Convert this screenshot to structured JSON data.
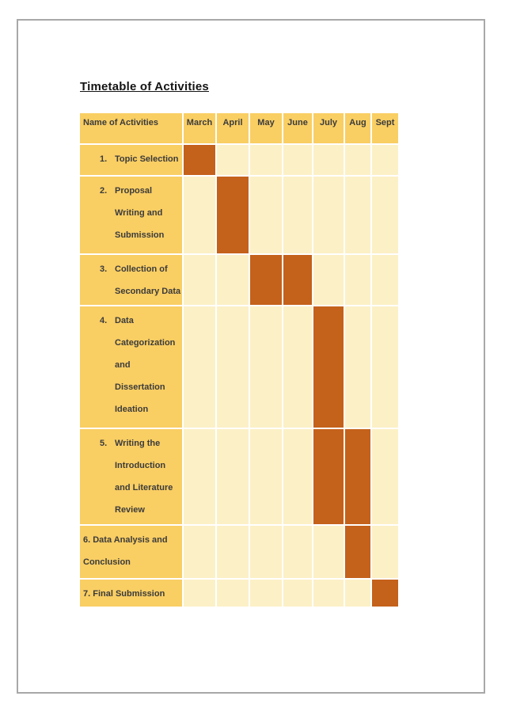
{
  "page": {
    "title": "Timetable of Activities"
  },
  "chart_data": {
    "type": "table",
    "subtype": "gantt",
    "title": "Timetable of Activities",
    "columns": [
      "Name of Activities",
      "March",
      "April",
      "May",
      "June",
      "July",
      "Aug",
      "Sept"
    ],
    "months": [
      "March",
      "April",
      "May",
      "June",
      "July",
      "Aug",
      "Sept"
    ],
    "rows": [
      {
        "number": "1.",
        "lines": [
          "Topic Selection"
        ],
        "hanging_indent": true,
        "active_months": [
          "March"
        ]
      },
      {
        "number": "2.",
        "lines": [
          "Proposal",
          "Writing and",
          "Submission"
        ],
        "hanging_indent": true,
        "active_months": [
          "April"
        ]
      },
      {
        "number": "3.",
        "lines": [
          "Collection of",
          "Secondary Data"
        ],
        "hanging_indent": true,
        "active_months": [
          "May",
          "June"
        ]
      },
      {
        "number": "4.",
        "lines": [
          "Data",
          "Categorization",
          "and",
          "Dissertation",
          "Ideation"
        ],
        "hanging_indent": true,
        "active_months": [
          "July"
        ]
      },
      {
        "number": "5.",
        "lines": [
          "Writing the",
          "Introduction",
          "and Literature",
          "Review"
        ],
        "hanging_indent": true,
        "active_months": [
          "July",
          "Aug"
        ]
      },
      {
        "number": "",
        "lines": [
          "6. Data Analysis and",
          "Conclusion"
        ],
        "hanging_indent": false,
        "active_months": [
          "Aug"
        ]
      },
      {
        "number": "",
        "lines": [
          "7. Final Submission"
        ],
        "hanging_indent": false,
        "active_months": [
          "Sept"
        ]
      }
    ],
    "colors": {
      "header_bg": "#F9CE63",
      "cell_bg": "#FCF0C6",
      "bar": "#C4611B",
      "text": "#3B3B3B",
      "page_border": "#A8A8A8"
    },
    "layout_hints": {
      "legend": "none",
      "grid": "white 2px separators between all cells"
    }
  }
}
